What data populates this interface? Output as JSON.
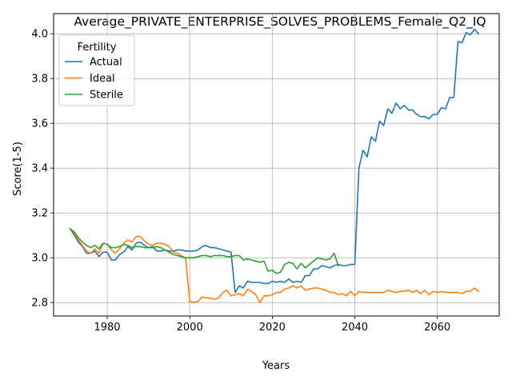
{
  "chart_data": {
    "type": "line",
    "title": "Average_PRIVATE_ENTERPRISE_SOLVES_PROBLEMS_Female_Q2_IQ",
    "xlabel": "Years",
    "ylabel": "Score(1-5)",
    "xlim": [
      1967,
      2075
    ],
    "ylim": [
      2.74,
      4.09
    ],
    "x_ticks": [
      "1980",
      "2000",
      "2020",
      "2040",
      "2060"
    ],
    "y_ticks": [
      "2.8",
      "3.0",
      "3.2",
      "3.4",
      "3.6",
      "3.8",
      "4.0"
    ],
    "grid": true,
    "legend": {
      "title": "Fertility",
      "placement": "top-left"
    },
    "series": [
      {
        "name": "Actual",
        "color": "#1f77b4",
        "x": [
          1971,
          1972,
          1973,
          1974,
          1975,
          1976,
          1977,
          1978,
          1979,
          1980,
          1981,
          1982,
          1983,
          1984,
          1985,
          1986,
          1987,
          1988,
          1989,
          1990,
          1991,
          1992,
          1993,
          1994,
          1995,
          1996,
          1997,
          1998,
          1999,
          2000,
          2001,
          2002,
          2003,
          2004,
          2005,
          2006,
          2007,
          2008,
          2009,
          2010,
          2011,
          2012,
          2013,
          2014,
          2015,
          2016,
          2017,
          2018,
          2019,
          2020,
          2021,
          2022,
          2023,
          2024,
          2025,
          2026,
          2027,
          2028,
          2029,
          2030,
          2031,
          2032,
          2033,
          2034,
          2035,
          2036,
          2037,
          2038,
          2039,
          2040,
          2041,
          2042,
          2043,
          2044,
          2045,
          2046,
          2047,
          2048,
          2049,
          2050,
          2051,
          2052,
          2053,
          2054,
          2055,
          2056,
          2057,
          2058,
          2059,
          2060,
          2061,
          2062,
          2063,
          2064,
          2065,
          2066,
          2067,
          2068,
          2069,
          2070
        ],
        "values": [
          3.13,
          3.1,
          3.07,
          3.05,
          3.02,
          3.02,
          3.03,
          3.005,
          3.025,
          3.025,
          2.99,
          2.99,
          3.015,
          3.025,
          3.05,
          3.035,
          3.065,
          3.07,
          3.055,
          3.045,
          3.05,
          3.03,
          3.03,
          3.035,
          3.03,
          3.03,
          3.035,
          3.035,
          3.03,
          3.03,
          3.03,
          3.035,
          3.05,
          3.055,
          3.045,
          3.045,
          3.04,
          3.035,
          3.03,
          3.025,
          2.845,
          2.875,
          2.865,
          2.895,
          2.89,
          2.89,
          2.89,
          2.885,
          2.885,
          2.895,
          2.89,
          2.895,
          2.89,
          2.905,
          2.89,
          2.895,
          2.89,
          2.92,
          2.92,
          2.95,
          2.95,
          2.965,
          2.96,
          2.955,
          2.965,
          2.97,
          2.965,
          2.965,
          2.97,
          2.97,
          3.4,
          3.48,
          3.45,
          3.54,
          3.52,
          3.61,
          3.59,
          3.665,
          3.645,
          3.69,
          3.665,
          3.68,
          3.66,
          3.66,
          3.64,
          3.63,
          3.63,
          3.62,
          3.64,
          3.64,
          3.67,
          3.665,
          3.715,
          3.715,
          3.965,
          3.96,
          4.005,
          3.995,
          4.02,
          4.0
        ]
      },
      {
        "name": "Ideal",
        "color": "#ff7f0e",
        "x": [
          1971,
          1972,
          1973,
          1974,
          1975,
          1976,
          1977,
          1978,
          1979,
          1980,
          1981,
          1982,
          1983,
          1984,
          1985,
          1986,
          1987,
          1988,
          1989,
          1990,
          1991,
          1992,
          1993,
          1994,
          1995,
          1996,
          1997,
          1998,
          1999,
          2000,
          2001,
          2002,
          2003,
          2004,
          2005,
          2006,
          2007,
          2008,
          2009,
          2010,
          2011,
          2012,
          2013,
          2014,
          2015,
          2016,
          2017,
          2018,
          2019,
          2020,
          2021,
          2022,
          2023,
          2024,
          2025,
          2026,
          2027,
          2028,
          2029,
          2030,
          2031,
          2032,
          2033,
          2034,
          2035,
          2036,
          2037,
          2038,
          2039,
          2040,
          2041,
          2042,
          2043,
          2044,
          2045,
          2046,
          2047,
          2048,
          2049,
          2050,
          2051,
          2052,
          2053,
          2054,
          2055,
          2056,
          2057,
          2058,
          2059,
          2060,
          2061,
          2062,
          2063,
          2064,
          2065,
          2066,
          2067,
          2068,
          2069,
          2070
        ],
        "values": [
          3.13,
          3.11,
          3.08,
          3.055,
          3.03,
          3.02,
          3.04,
          3.02,
          3.065,
          3.06,
          3.035,
          3.02,
          3.04,
          3.065,
          3.08,
          3.07,
          3.095,
          3.095,
          3.075,
          3.06,
          3.055,
          3.065,
          3.065,
          3.06,
          3.05,
          3.025,
          3.02,
          3.01,
          2.995,
          2.805,
          2.8,
          2.805,
          2.825,
          2.82,
          2.82,
          2.815,
          2.82,
          2.845,
          2.855,
          2.83,
          2.835,
          2.84,
          2.83,
          2.86,
          2.85,
          2.835,
          2.8,
          2.83,
          2.83,
          2.835,
          2.845,
          2.845,
          2.86,
          2.865,
          2.875,
          2.865,
          2.875,
          2.855,
          2.86,
          2.865,
          2.865,
          2.86,
          2.855,
          2.845,
          2.845,
          2.835,
          2.84,
          2.83,
          2.85,
          2.83,
          2.85,
          2.845,
          2.845,
          2.845,
          2.845,
          2.845,
          2.845,
          2.855,
          2.85,
          2.845,
          2.85,
          2.85,
          2.855,
          2.845,
          2.855,
          2.84,
          2.855,
          2.835,
          2.85,
          2.845,
          2.85,
          2.845,
          2.845,
          2.845,
          2.845,
          2.84,
          2.85,
          2.85,
          2.865,
          2.85
        ]
      },
      {
        "name": "Sterile",
        "color": "#2ca02c",
        "x": [
          1971,
          1972,
          1973,
          1974,
          1975,
          1976,
          1977,
          1978,
          1979,
          1980,
          1981,
          1982,
          1983,
          1984,
          1985,
          1986,
          1987,
          1988,
          1989,
          1990,
          1991,
          1992,
          1993,
          1994,
          1995,
          1996,
          1997,
          1998,
          1999,
          2000,
          2001,
          2002,
          2003,
          2004,
          2005,
          2006,
          2007,
          2008,
          2009,
          2010,
          2011,
          2012,
          2013,
          2014,
          2015,
          2016,
          2017,
          2018,
          2019,
          2020,
          2021,
          2022,
          2023,
          2024,
          2025,
          2026,
          2027,
          2028,
          2029,
          2030,
          2031,
          2032,
          2033,
          2034,
          2035,
          2036
        ],
        "values": [
          3.13,
          3.115,
          3.09,
          3.07,
          3.055,
          3.045,
          3.055,
          3.04,
          3.065,
          3.06,
          3.045,
          3.045,
          3.05,
          3.06,
          3.055,
          3.045,
          3.05,
          3.05,
          3.045,
          3.045,
          3.045,
          3.05,
          3.045,
          3.035,
          3.025,
          3.015,
          3.01,
          3.005,
          3.0,
          3.0,
          3.0,
          3.005,
          3.01,
          3.01,
          3.005,
          3.01,
          3.01,
          3.01,
          3.005,
          3.005,
          3.01,
          3.01,
          2.99,
          2.995,
          2.99,
          2.985,
          2.98,
          2.985,
          2.94,
          2.945,
          2.93,
          2.935,
          2.97,
          2.98,
          2.975,
          2.95,
          2.975,
          2.955,
          2.97,
          2.985,
          3.0,
          2.995,
          2.99,
          2.995,
          3.02,
          2.965
        ]
      }
    ]
  }
}
